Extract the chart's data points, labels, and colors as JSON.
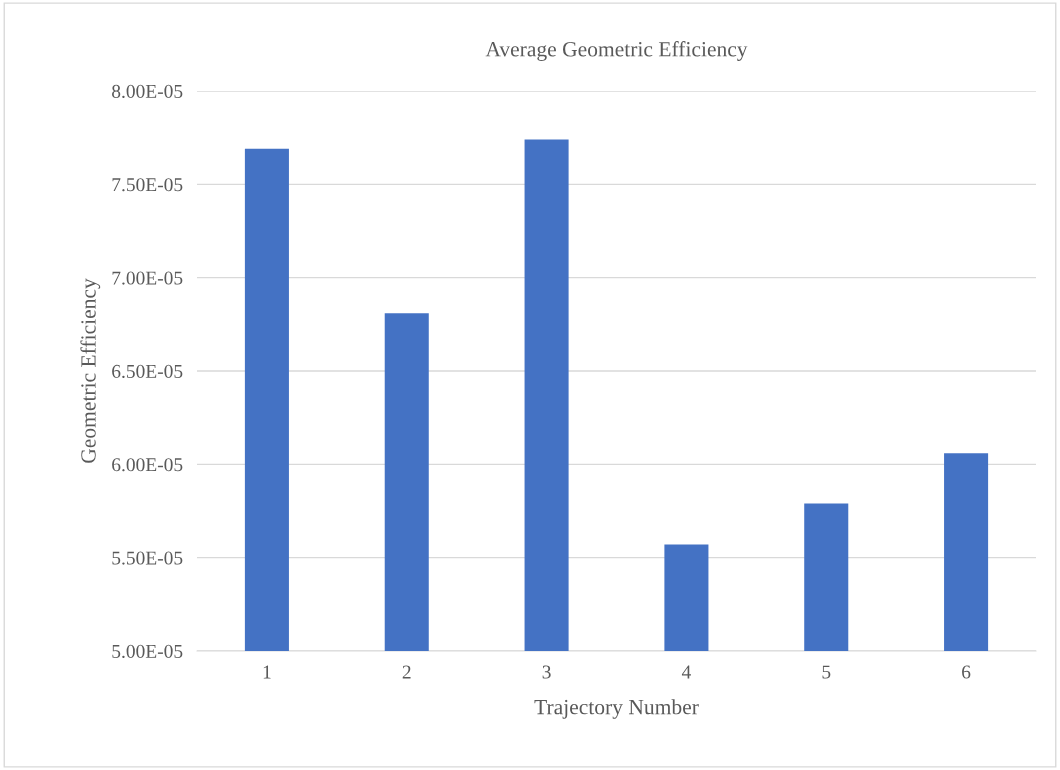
{
  "chart_data": {
    "type": "bar",
    "title": "Average Geometric Efficiency",
    "xlabel": "Trajectory Number",
    "ylabel": "Geometric Efficiency",
    "categories": [
      "1",
      "2",
      "3",
      "4",
      "5",
      "6"
    ],
    "values": [
      7.69e-05,
      6.81e-05,
      7.74e-05,
      5.57e-05,
      5.79e-05,
      6.06e-05
    ],
    "color": "#4472c4",
    "ylim": [
      5e-05,
      8e-05
    ],
    "yticks": [
      {
        "value": 5e-05,
        "label": "5.00E-05"
      },
      {
        "value": 5.5e-05,
        "label": "5.50E-05"
      },
      {
        "value": 6e-05,
        "label": "6.00E-05"
      },
      {
        "value": 6.5e-05,
        "label": "6.50E-05"
      },
      {
        "value": 7e-05,
        "label": "7.00E-05"
      },
      {
        "value": 7.5e-05,
        "label": "7.50E-05"
      },
      {
        "value": 8e-05,
        "label": "8.00E-05"
      }
    ],
    "grid": "y",
    "legend": false
  }
}
